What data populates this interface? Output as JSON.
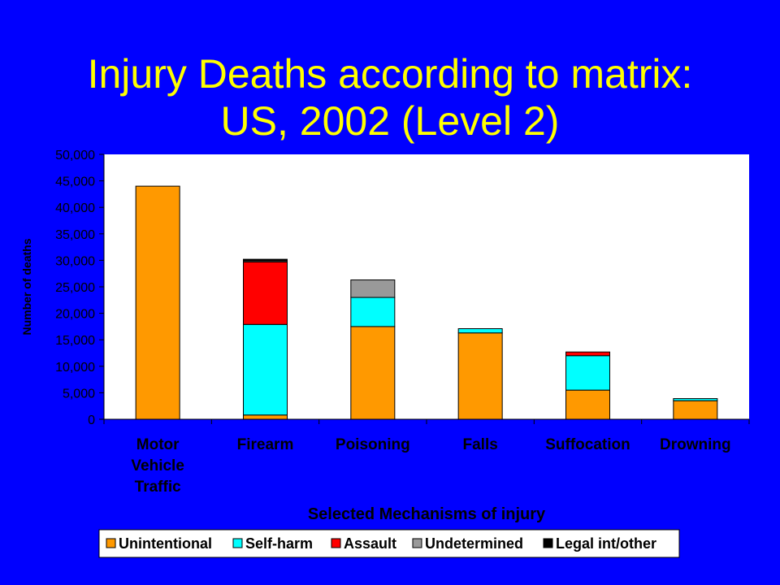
{
  "page": {
    "title_line1": "Injury Deaths according to matrix:",
    "title_line2": "US, 2002 (Level 2)"
  },
  "colors": {
    "background": "#0000ff",
    "title": "#ffff00",
    "plot_area": "#ffffff"
  },
  "chart_data": {
    "type": "bar",
    "stacked": true,
    "categories": [
      [
        "Motor",
        "Vehicle",
        "Traffic"
      ],
      [
        "Firearm"
      ],
      [
        "Poisoning"
      ],
      [
        "Falls"
      ],
      [
        "Suffocation"
      ],
      [
        "Drowning"
      ]
    ],
    "series": [
      {
        "name": "Unintentional",
        "color": "#ff9900",
        "values": [
          44000,
          800,
          17500,
          16300,
          5500,
          3500
        ]
      },
      {
        "name": "Self-harm",
        "color": "#00ffff",
        "values": [
          0,
          17100,
          5500,
          800,
          6500,
          400
        ]
      },
      {
        "name": "Assault",
        "color": "#ff0000",
        "values": [
          0,
          11800,
          0,
          0,
          700,
          0
        ]
      },
      {
        "name": "Undetermined",
        "color": "#999999",
        "values": [
          0,
          200,
          3300,
          0,
          0,
          0
        ]
      },
      {
        "name": "Legal int/other",
        "color": "#000000",
        "values": [
          0,
          300,
          0,
          0,
          0,
          0
        ]
      }
    ],
    "ylim": [
      0,
      50000
    ],
    "yticks": [
      0,
      5000,
      10000,
      15000,
      20000,
      25000,
      30000,
      35000,
      40000,
      45000,
      50000
    ],
    "ytick_labels": [
      "0",
      "5,000",
      "10,000",
      "15,000",
      "20,000",
      "25,000",
      "30,000",
      "35,000",
      "40,000",
      "45,000",
      "50,000"
    ],
    "xlabel": "Selected Mechanisms of injury",
    "ylabel": "Number of deaths",
    "grid": false,
    "legend_position": "bottom"
  }
}
